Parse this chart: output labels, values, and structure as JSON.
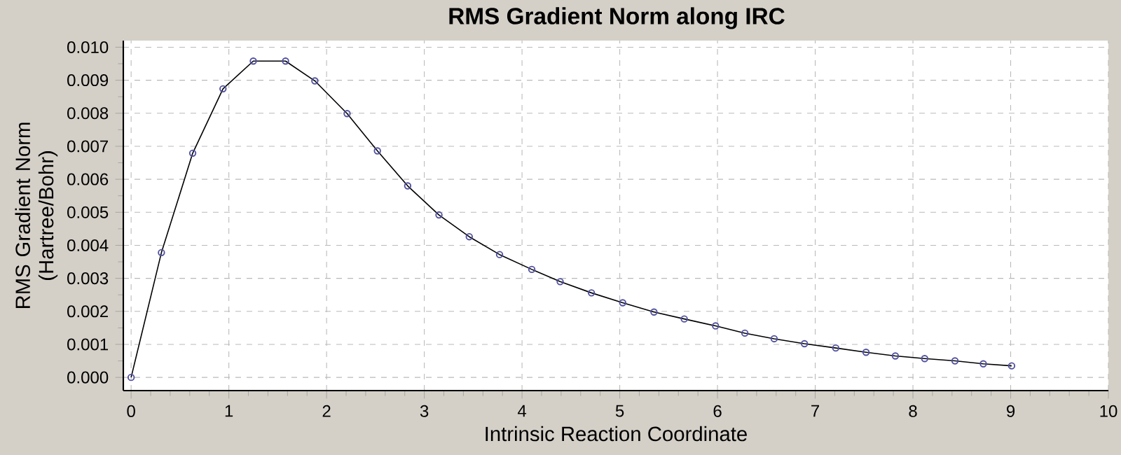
{
  "chart_data": {
    "type": "line",
    "title": "RMS Gradient Norm along IRC",
    "xlabel": "Intrinsic Reaction Coordinate",
    "ylabel": "RMS Gradient Norm (Hartree/Bohr)",
    "x": [
      0,
      0.31,
      0.63,
      0.94,
      1.25,
      1.58,
      1.88,
      2.21,
      2.52,
      2.83,
      3.15,
      3.46,
      3.77,
      4.1,
      4.39,
      4.71,
      5.03,
      5.35,
      5.66,
      5.98,
      6.28,
      6.58,
      6.89,
      7.21,
      7.52,
      7.82,
      8.12,
      8.43,
      8.72,
      9.01
    ],
    "series": [
      {
        "color": "#5050a0",
        "values": [
          0,
          0.00378,
          0.00679,
          0.00874,
          0.00958,
          0.00958,
          0.00898,
          0.00799,
          0.00686,
          0.0058,
          0.00492,
          0.00426,
          0.00372,
          0.00327,
          0.0029,
          0.00256,
          0.00226,
          0.00198,
          0.00177,
          0.00156,
          0.00134,
          0.00117,
          0.00102,
          0.00089,
          0.00076,
          0.00065,
          0.00057,
          0.0005,
          0.00041,
          0.00035
        ]
      }
    ],
    "xlim": [
      -0.08,
      10
    ],
    "ylim": [
      -0.0004,
      0.0102
    ],
    "xticks": [
      0,
      1,
      2,
      3,
      4,
      5,
      6,
      7,
      8,
      9,
      10
    ],
    "yticks": [
      {
        "value": 0,
        "label": "0.000"
      },
      {
        "value": 0.001,
        "label": "0.001"
      },
      {
        "value": 0.002,
        "label": "0.002"
      },
      {
        "value": 0.003,
        "label": "0.003"
      },
      {
        "value": 0.004,
        "label": "0.004"
      },
      {
        "value": 0.005,
        "label": "0.005"
      },
      {
        "value": 0.006,
        "label": "0.006"
      },
      {
        "value": 0.007,
        "label": "0.007"
      },
      {
        "value": 0.008,
        "label": "0.008"
      },
      {
        "value": 0.009,
        "label": "0.009"
      },
      {
        "value": 0.01,
        "label": "0.010"
      }
    ],
    "grid": true,
    "marker": "circle",
    "line_style": "solid"
  }
}
